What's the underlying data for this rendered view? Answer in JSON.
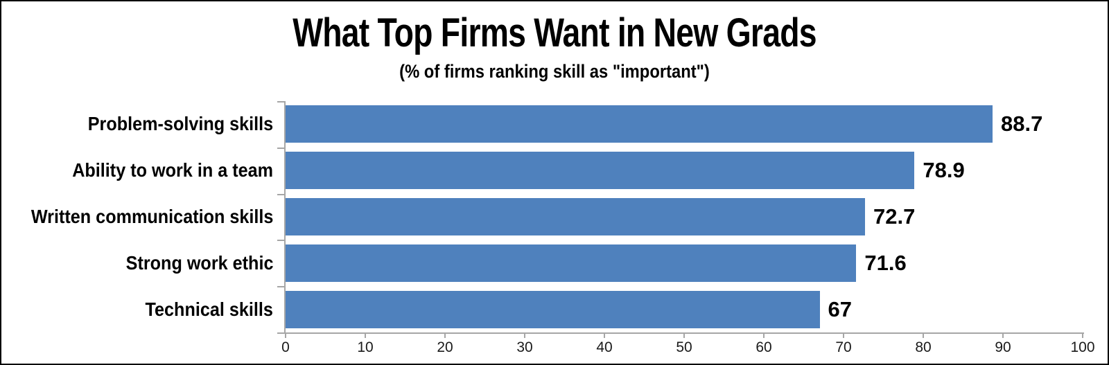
{
  "chart_data": {
    "type": "bar",
    "orientation": "horizontal",
    "title": "What Top Firms Want in New Grads",
    "subtitle": "(% of firms ranking skill as \"important\")",
    "categories": [
      "Problem-solving skills",
      "Ability to work in a team",
      "Written communication skills",
      "Strong work ethic",
      "Technical skills"
    ],
    "values": [
      88.7,
      78.9,
      72.7,
      71.6,
      67
    ],
    "value_labels": [
      "88.7",
      "78.9",
      "72.7",
      "71.6",
      "67"
    ],
    "xlabel": "",
    "ylabel": "",
    "xlim": [
      0,
      100
    ],
    "x_ticks": [
      0,
      10,
      20,
      30,
      40,
      50,
      60,
      70,
      80,
      90,
      100
    ],
    "grid": false,
    "legend": false,
    "colors": {
      "bar": "#4F81BD",
      "axis": "#A6A6A6",
      "text": "#000000",
      "frame": "#000000"
    }
  }
}
